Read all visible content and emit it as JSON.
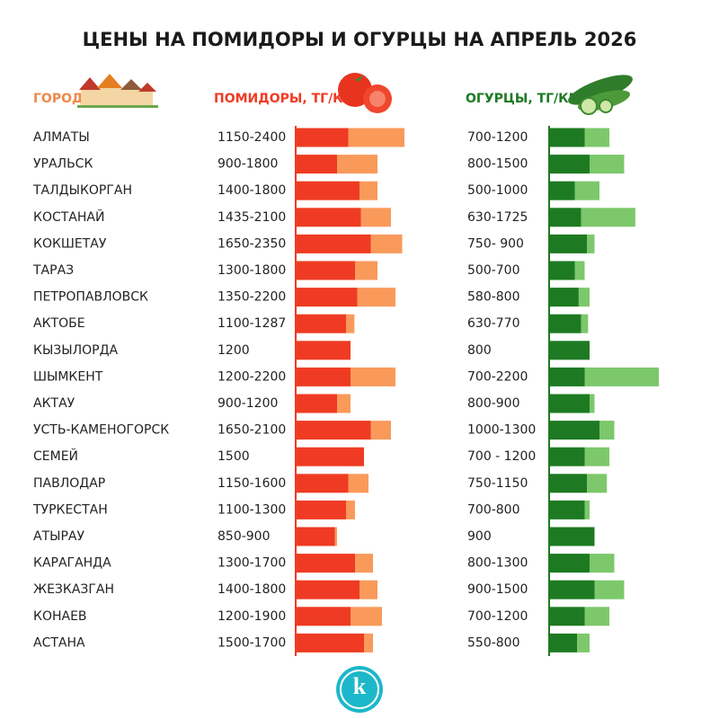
{
  "title": "ЦЕНЫ НА ПОМИДОРЫ И ОГУРЦЫ НА АПРЕЛЬ 2026",
  "header": {
    "city": "ГОРОД",
    "tomato": "ПОМИДОРЫ, ТГ/КГ",
    "cucumber": "ОГУРЦЫ, ТГ/КГ"
  },
  "colors": {
    "city": "#f0884a",
    "tomato": "#ef3b23",
    "tomato_light": "#f99a5b",
    "cucumber": "#1d7a22",
    "cucumber_light": "#7cc86b"
  },
  "rows": [
    {
      "city": "АЛМАТЫ",
      "tomato": {
        "label": "1150-2400",
        "values": [
          1150,
          2400
        ]
      },
      "cucumber": {
        "label": "700-1200",
        "values": [
          700,
          1200
        ]
      }
    },
    {
      "city": "УРАЛЬСК",
      "tomato": {
        "label": "900-1800",
        "values": [
          900,
          1800
        ]
      },
      "cucumber": {
        "label": "800-1500",
        "values": [
          800,
          1500
        ]
      }
    },
    {
      "city": "ТАЛДЫКОРГАН",
      "tomato": {
        "label": "1400-1800",
        "values": [
          1400,
          1800
        ]
      },
      "cucumber": {
        "label": "500-1000",
        "values": [
          500,
          1000
        ]
      }
    },
    {
      "city": "КОСТАНАЙ",
      "tomato": {
        "label": "1435-2100",
        "values": [
          1435,
          2100
        ]
      },
      "cucumber": {
        "label": "630-1725",
        "values": [
          630,
          1725
        ]
      }
    },
    {
      "city": "КОКШЕТАУ",
      "tomato": {
        "label": "1650-2350",
        "values": [
          1650,
          2350
        ]
      },
      "cucumber": {
        "label": "750- 900",
        "values": [
          750,
          900
        ]
      }
    },
    {
      "city": "ТАРАЗ",
      "tomato": {
        "label": "1300-1800",
        "values": [
          1300,
          1800
        ]
      },
      "cucumber": {
        "label": "500-700",
        "values": [
          500,
          700
        ]
      }
    },
    {
      "city": "ПЕТРОПАВЛОВСК",
      "tomato": {
        "label": "1350-2200",
        "values": [
          1350,
          2200
        ]
      },
      "cucumber": {
        "label": "580-800",
        "values": [
          580,
          800
        ]
      }
    },
    {
      "city": "АКТОБЕ",
      "tomato": {
        "label": "1100-1287",
        "values": [
          1100,
          1287
        ]
      },
      "cucumber": {
        "label": "630-770",
        "values": [
          630,
          770
        ]
      }
    },
    {
      "city": "КЫЗЫЛОРДА",
      "tomato": {
        "label": "1200",
        "values": [
          1200
        ]
      },
      "cucumber": {
        "label": "800",
        "values": [
          800
        ]
      }
    },
    {
      "city": "ШЫМКЕНТ",
      "tomato": {
        "label": "1200-2200",
        "values": [
          1200,
          2200
        ]
      },
      "cucumber": {
        "label": "700-2200",
        "values": [
          700,
          2200
        ]
      }
    },
    {
      "city": "АКТАУ",
      "tomato": {
        "label": "900-1200",
        "values": [
          900,
          1200
        ]
      },
      "cucumber": {
        "label": "800-900",
        "values": [
          800,
          900
        ]
      }
    },
    {
      "city": "УСТЬ-КАМЕНОГОРСК",
      "tomato": {
        "label": "1650-2100",
        "values": [
          1650,
          2100
        ]
      },
      "cucumber": {
        "label": "1000-1300",
        "values": [
          1000,
          1300
        ]
      }
    },
    {
      "city": "СЕМЕЙ",
      "tomato": {
        "label": "1500",
        "values": [
          1500
        ]
      },
      "cucumber": {
        "label": "700 - 1200",
        "values": [
          700,
          1200
        ]
      }
    },
    {
      "city": "ПАВЛОДАР",
      "tomato": {
        "label": "1150-1600",
        "values": [
          1150,
          1600
        ]
      },
      "cucumber": {
        "label": "750-1150",
        "values": [
          750,
          1150
        ]
      }
    },
    {
      "city": "ТУРКЕСТАН",
      "tomato": {
        "label": "1100-1300",
        "values": [
          1100,
          1300
        ]
      },
      "cucumber": {
        "label": "700-800",
        "values": [
          700,
          800
        ]
      }
    },
    {
      "city": "АТЫРАУ",
      "tomato": {
        "label": "850-900",
        "values": [
          850,
          900
        ]
      },
      "cucumber": {
        "label": "900",
        "values": [
          900
        ]
      }
    },
    {
      "city": "КАРАГАНДА",
      "tomato": {
        "label": "1300-1700",
        "values": [
          1300,
          1700
        ]
      },
      "cucumber": {
        "label": "800-1300",
        "values": [
          800,
          1300
        ]
      }
    },
    {
      "city": "ЖЕЗКАЗГАН",
      "tomato": {
        "label": "1400-1800",
        "values": [
          1400,
          1800
        ]
      },
      "cucumber": {
        "label": "900-1500",
        "values": [
          900,
          1500
        ]
      }
    },
    {
      "city": "КОНАЕВ",
      "tomato": {
        "label": "1200-1900",
        "values": [
          1200,
          1900
        ]
      },
      "cucumber": {
        "label": "700-1200",
        "values": [
          700,
          1200
        ]
      }
    },
    {
      "city": "АСТАНА",
      "tomato": {
        "label": "1500-1700",
        "values": [
          1500,
          1700
        ]
      },
      "cucumber": {
        "label": "550-800",
        "values": [
          550,
          800
        ]
      }
    }
  ],
  "logo": "k"
}
